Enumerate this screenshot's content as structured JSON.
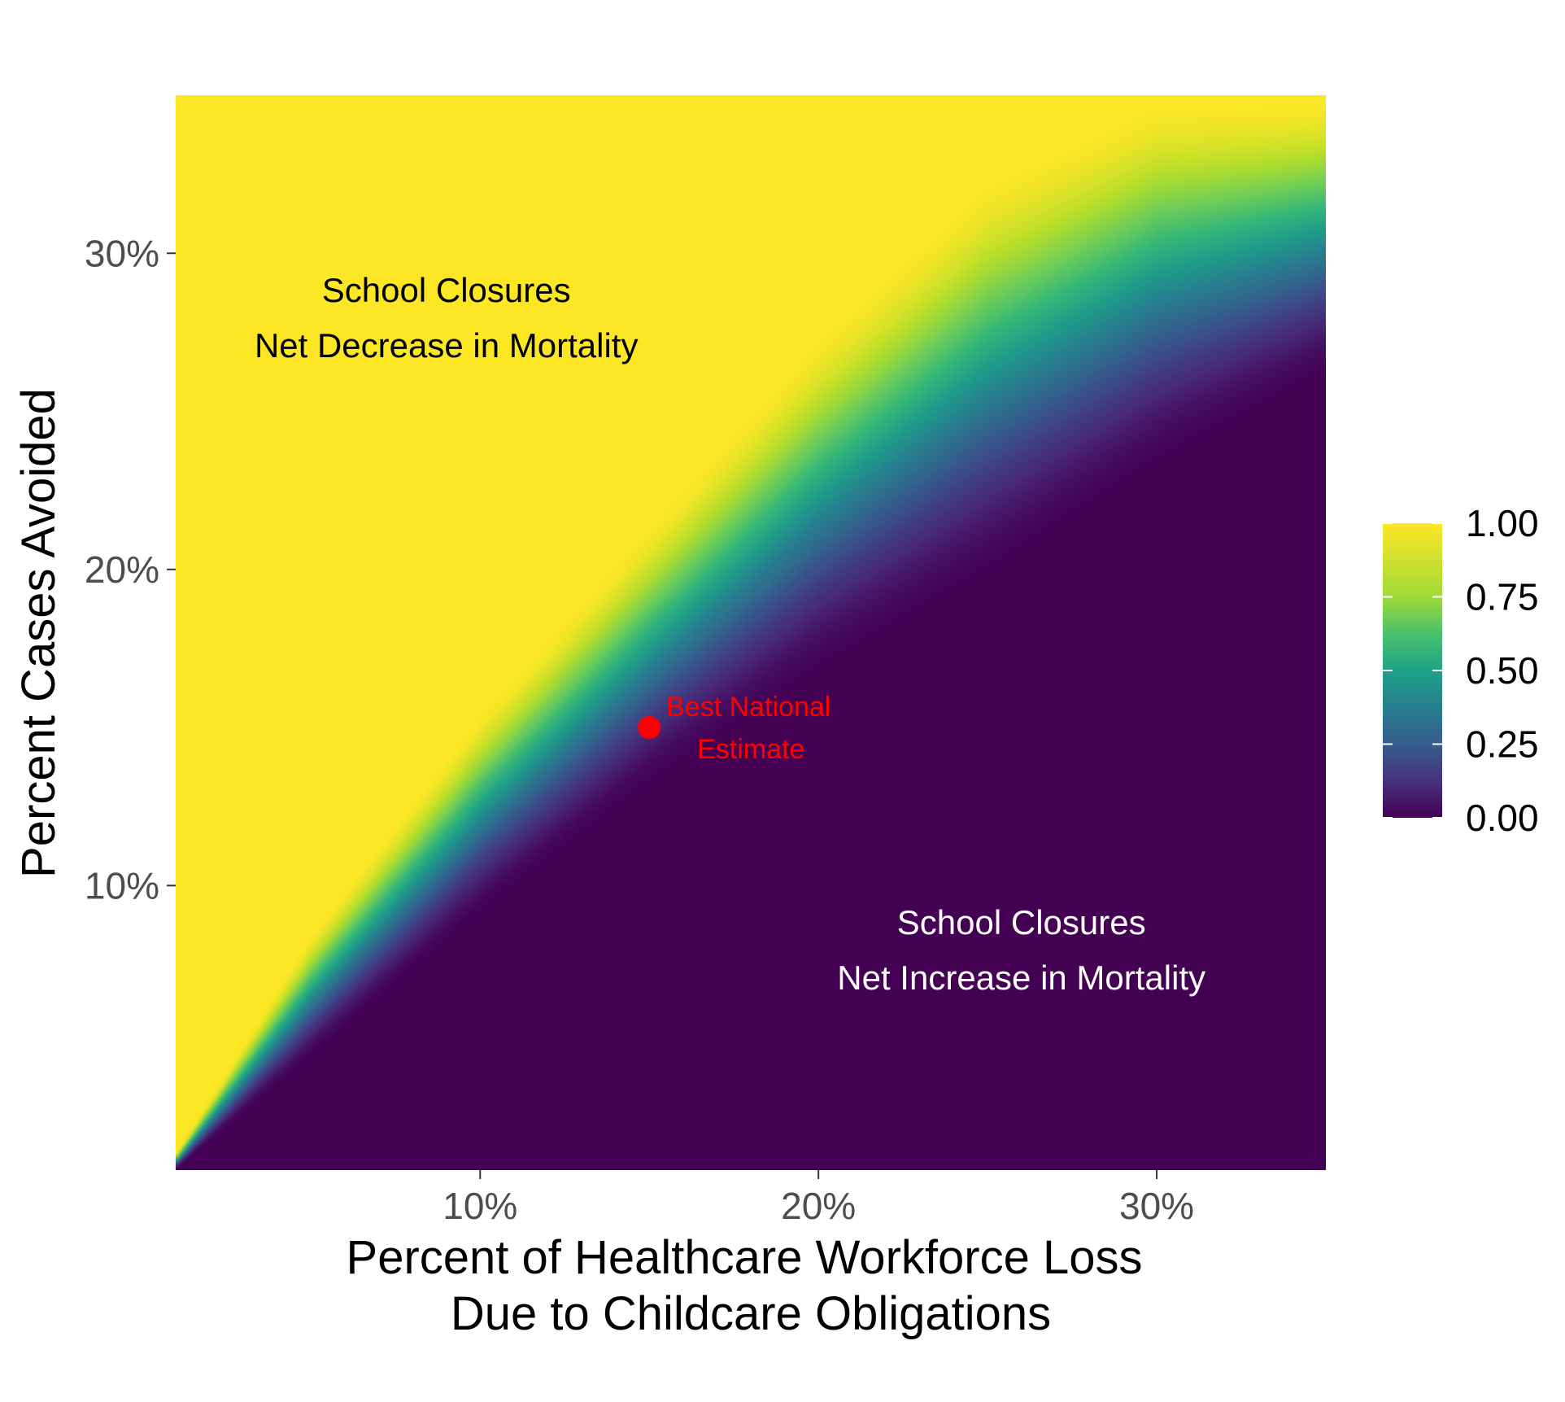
{
  "chart_data": {
    "type": "heatmap",
    "title": "",
    "xlabel": [
      "Percent of Healthcare Workforce Loss",
      "Due to Childcare Obligations"
    ],
    "ylabel": "Percent Cases Avoided",
    "xlim": [
      1,
      35
    ],
    "ylim": [
      1,
      35
    ],
    "x_ticks": [
      10,
      20,
      30
    ],
    "x_tick_labels": [
      "10%",
      "20%",
      "30%"
    ],
    "y_ticks": [
      10,
      20,
      30
    ],
    "y_tick_labels": [
      "10%",
      "20%",
      "30%"
    ],
    "grid": false,
    "color_scale": {
      "palette": "viridis",
      "min": 0,
      "max": 1,
      "breaks": [
        0.0,
        0.25,
        0.5,
        0.75,
        1.0
      ],
      "labels": [
        "0.00",
        "0.25",
        "0.50",
        "0.75",
        "1.00"
      ],
      "legend_position": "right"
    },
    "transition_band": {
      "description": "probability near 0 below the band and near 1 above it",
      "x": [
        1,
        5,
        10,
        15,
        20,
        25,
        30,
        35
      ],
      "upper_boundary_y": [
        1.5,
        8.5,
        15.5,
        21.5,
        27.5,
        32.5,
        35,
        35
      ],
      "lower_boundary_y": [
        1,
        4.5,
        9,
        13,
        16.5,
        19.5,
        23,
        26
      ]
    },
    "points": [
      {
        "x": 15,
        "y": 15,
        "color": "#ff0000",
        "label": [
          "Best National",
          "Estimate"
        ]
      }
    ],
    "annotations": [
      {
        "text": [
          "School Closures",
          "Net Decrease in Mortality"
        ],
        "x": 9,
        "y": 28,
        "color": "#000000"
      },
      {
        "text": [
          "School Closures",
          "Net Increase in Mortality"
        ],
        "x": 26,
        "y": 8,
        "color": "#ffffff"
      }
    ]
  }
}
